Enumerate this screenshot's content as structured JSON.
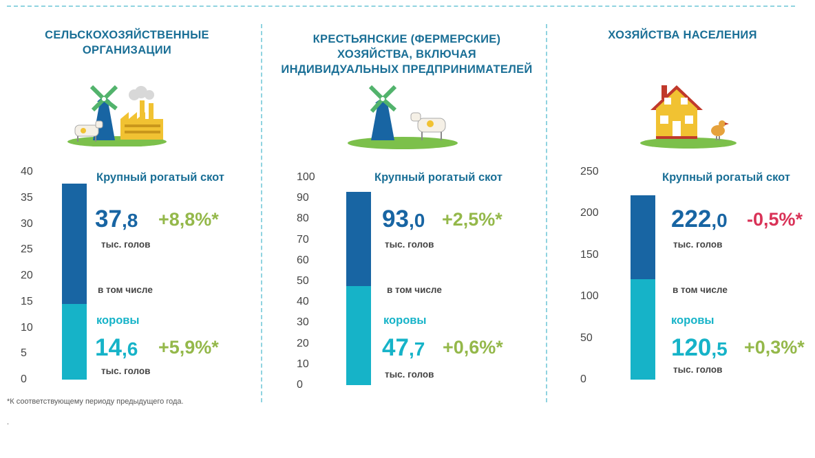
{
  "colors": {
    "dark_blue": "#1865a3",
    "cyan": "#16b3c8",
    "positive": "#94b84a",
    "negative": "#d93257",
    "title": "#1a6f96"
  },
  "panels": [
    {
      "title_lines": [
        "СЕЛЬСКОХОЗЯЙСТВЕННЫЕ",
        "ОРГАНИЗАЦИИ"
      ],
      "illustration": "windmill-factory-cow-icon",
      "axis_ticks": [
        "40",
        "35",
        "30",
        "25",
        "20",
        "15",
        "10",
        "5",
        "0"
      ],
      "heading": "Крупный рогатый скот",
      "total": {
        "int": "37",
        "dec": ",8",
        "change": "+8,8%*",
        "unit": "тыс. голов"
      },
      "including": "в том числе",
      "cows_label": "коровы",
      "cows": {
        "int": "14",
        "dec": ",6",
        "change": "+5,9%*",
        "unit": "тыс. голов"
      }
    },
    {
      "title_lines": [
        "КРЕСТЬЯНСКИЕ (ФЕРМЕРСКИЕ)",
        "ХОЗЯЙСТВА, ВКЛЮЧАЯ",
        "ИНДИВИДУАЛЬНЫХ ПРЕДПРИНИМАТЕЛЕЙ"
      ],
      "illustration": "windmill-cow-icon",
      "axis_ticks": [
        "100",
        "90",
        "80",
        "70",
        "60",
        "50",
        "40",
        "30",
        "20",
        "10",
        "0"
      ],
      "heading": "Крупный рогатый скот",
      "total": {
        "int": "93",
        "dec": ",0",
        "change": "+2,5%*",
        "unit": "тыс. голов"
      },
      "including": "в том числе",
      "cows_label": "коровы",
      "cows": {
        "int": "47",
        "dec": ",7",
        "change": "+0,6%*",
        "unit": "тыс. голов"
      }
    },
    {
      "title_lines": [
        "ХОЗЯЙСТВА НАСЕЛЕНИЯ"
      ],
      "illustration": "house-chicken-icon",
      "axis_ticks": [
        "250",
        "200",
        "150",
        "100",
        "50",
        "0"
      ],
      "heading": "Крупный рогатый скот",
      "total": {
        "int": "222",
        "dec": ",0",
        "change": "-0,5%*",
        "unit": "тыс. голов"
      },
      "including": "в том числе",
      "cows_label": "коровы",
      "cows": {
        "int": "120",
        "dec": ",5",
        "change": "+0,3%*",
        "unit": "тыс. голов"
      }
    }
  ],
  "footnote": "*К соответствующему периоду предыдущего года.",
  "dot": ".",
  "chart_data": [
    {
      "type": "bar",
      "title": "СЕЛЬСКОХОЗЯЙСТВЕННЫЕ ОРГАНИЗАЦИИ",
      "ylim": [
        0,
        40
      ],
      "series": [
        {
          "name": "Крупный рогатый скот",
          "values": [
            37.8
          ]
        },
        {
          "name": "коровы",
          "values": [
            14.6
          ]
        }
      ],
      "changes": [
        "+8,8%*",
        "+5,9%*"
      ]
    },
    {
      "type": "bar",
      "title": "КРЕСТЬЯНСКИЕ (ФЕРМЕРСКИЕ) ХОЗЯЙСТВА, ВКЛЮЧАЯ ИНДИВИДУАЛЬНЫХ ПРЕДПРИНИМАТЕЛЕЙ",
      "ylim": [
        0,
        100
      ],
      "series": [
        {
          "name": "Крупный рогатый скот",
          "values": [
            93.0
          ]
        },
        {
          "name": "коровы",
          "values": [
            47.7
          ]
        }
      ],
      "changes": [
        "+2,5%*",
        "+0,6%*"
      ]
    },
    {
      "type": "bar",
      "title": "ХОЗЯЙСТВА НАСЕЛЕНИЯ",
      "ylim": [
        0,
        250
      ],
      "series": [
        {
          "name": "Крупный рогатый скот",
          "values": [
            222.0
          ]
        },
        {
          "name": "коровы",
          "values": [
            120.5
          ]
        }
      ],
      "changes": [
        "-0,5%*",
        "+0,3%*"
      ]
    }
  ]
}
